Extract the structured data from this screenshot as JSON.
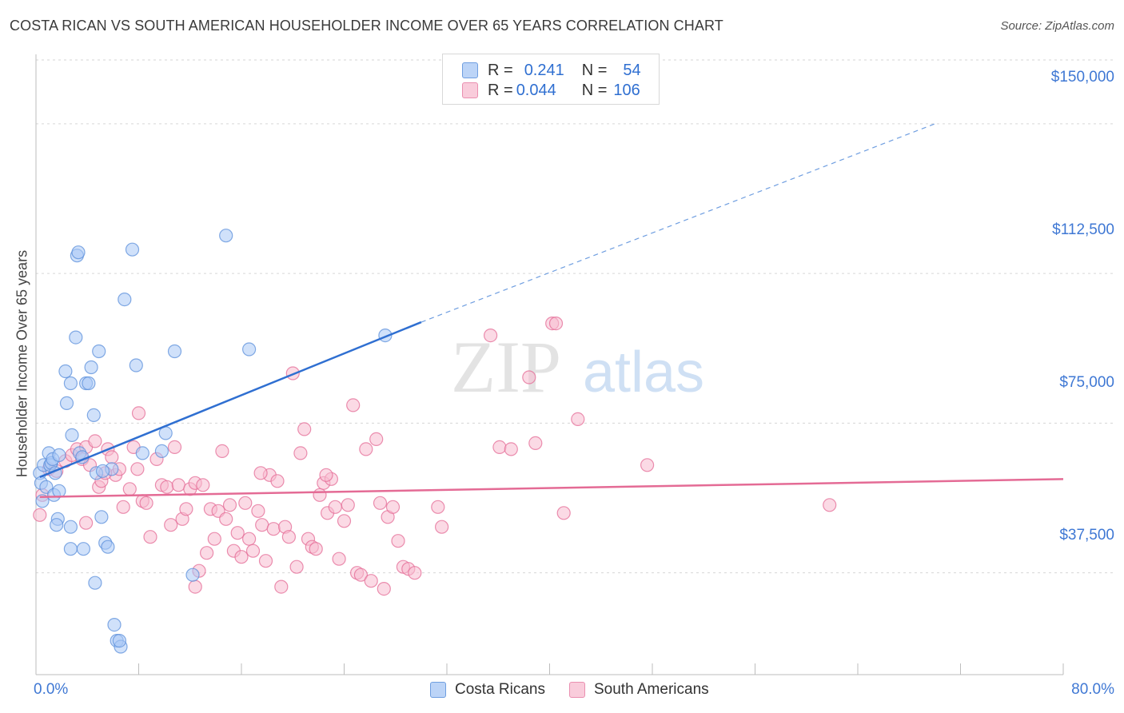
{
  "title": "COSTA RICAN VS SOUTH AMERICAN HOUSEHOLDER INCOME OVER 65 YEARS CORRELATION CHART",
  "source": "Source: ZipAtlas.com",
  "watermark": {
    "zip": "ZIP",
    "atlas": "atlas"
  },
  "legend": {
    "rows": [
      {
        "r_label": "R =",
        "r_value": "0.241",
        "n_label": "N =",
        "n_value": "54",
        "color": "#a9c8f5"
      },
      {
        "r_label": "R =",
        "r_value": "0.044",
        "n_label": "N =",
        "n_value": "106",
        "color": "#f7bcd0"
      }
    ]
  },
  "chart_data": {
    "type": "scatter",
    "title": "COSTA RICAN VS SOUTH AMERICAN HOUSEHOLDER INCOME OVER 65 YEARS CORRELATION CHART",
    "xlabel": "",
    "ylabel": "Householder Income Over 65 years",
    "xlim": [
      0,
      80
    ],
    "ylim": [
      12000,
      153000
    ],
    "x_tick_labels": [
      "0.0%",
      "80.0%"
    ],
    "y_ticks": [
      37500,
      75000,
      112500,
      150000
    ],
    "y_tick_labels": [
      "$37,500",
      "$75,000",
      "$112,500",
      "$150,000"
    ],
    "grid": true,
    "legend_position": "top-center",
    "series": [
      {
        "name": "Costa Ricans",
        "color": "#5b8fdb",
        "fill": "#a9c8f5",
        "trend": {
          "x": [
            0.3,
            30
          ],
          "y": [
            61500,
            100300
          ],
          "extends_to": [
            70,
            150000
          ]
        },
        "points": [
          [
            0.3,
            62500
          ],
          [
            0.4,
            60000
          ],
          [
            0.6,
            64500
          ],
          [
            0.8,
            59000
          ],
          [
            1.0,
            67500
          ],
          [
            1.1,
            64500
          ],
          [
            1.2,
            65000
          ],
          [
            1.3,
            66000
          ],
          [
            1.4,
            57000
          ],
          [
            1.5,
            62500
          ],
          [
            1.8,
            58000
          ],
          [
            1.8,
            67000
          ],
          [
            1.7,
            51000
          ],
          [
            2.3,
            88000
          ],
          [
            2.4,
            80000
          ],
          [
            2.7,
            85000
          ],
          [
            2.8,
            72000
          ],
          [
            3.1,
            96500
          ],
          [
            3.2,
            117000
          ],
          [
            3.3,
            117800
          ],
          [
            3.4,
            67500
          ],
          [
            3.6,
            66500
          ],
          [
            3.9,
            85000
          ],
          [
            4.1,
            85000
          ],
          [
            4.3,
            89000
          ],
          [
            4.5,
            77000
          ],
          [
            4.7,
            62500
          ],
          [
            4.9,
            93000
          ],
          [
            5.1,
            51500
          ],
          [
            5.4,
            45000
          ],
          [
            5.6,
            44000
          ],
          [
            5.9,
            63500
          ],
          [
            6.1,
            24500
          ],
          [
            6.3,
            20500
          ],
          [
            6.6,
            19000
          ],
          [
            6.9,
            106000
          ],
          [
            7.5,
            118500
          ],
          [
            7.8,
            89500
          ],
          [
            8.3,
            67500
          ],
          [
            9.8,
            68000
          ],
          [
            10.1,
            72500
          ],
          [
            10.8,
            93000
          ],
          [
            12.2,
            37000
          ],
          [
            14.8,
            122000
          ],
          [
            16.6,
            93500
          ],
          [
            27.2,
            97000
          ],
          [
            4.6,
            35000
          ],
          [
            2.7,
            49000
          ],
          [
            2.7,
            43500
          ],
          [
            3.7,
            43500
          ],
          [
            1.6,
            49500
          ],
          [
            0.5,
            55500
          ],
          [
            6.5,
            20500
          ],
          [
            5.2,
            63000
          ]
        ]
      },
      {
        "name": "South Americans",
        "color": "#e46b95",
        "fill": "#f7bcd0",
        "trend": {
          "x": [
            0.3,
            80
          ],
          "y": [
            56500,
            61000
          ]
        },
        "points": [
          [
            0.3,
            52000
          ],
          [
            0.5,
            57000
          ],
          [
            1.0,
            63500
          ],
          [
            1.6,
            63000
          ],
          [
            2.3,
            65500
          ],
          [
            2.8,
            67000
          ],
          [
            3.2,
            68500
          ],
          [
            3.6,
            66000
          ],
          [
            3.9,
            69000
          ],
          [
            4.2,
            64500
          ],
          [
            4.6,
            70500
          ],
          [
            4.9,
            59000
          ],
          [
            5.1,
            60500
          ],
          [
            5.6,
            68500
          ],
          [
            5.9,
            66500
          ],
          [
            6.2,
            62000
          ],
          [
            6.5,
            63500
          ],
          [
            6.8,
            54000
          ],
          [
            7.3,
            58500
          ],
          [
            7.6,
            69000
          ],
          [
            8.0,
            77500
          ],
          [
            8.3,
            55500
          ],
          [
            8.6,
            55000
          ],
          [
            8.9,
            46500
          ],
          [
            9.4,
            66000
          ],
          [
            9.8,
            59500
          ],
          [
            10.2,
            59000
          ],
          [
            10.5,
            49500
          ],
          [
            10.8,
            69000
          ],
          [
            11.1,
            59500
          ],
          [
            11.4,
            51000
          ],
          [
            11.7,
            53500
          ],
          [
            12.0,
            58500
          ],
          [
            12.4,
            60000
          ],
          [
            12.7,
            38000
          ],
          [
            13.0,
            59500
          ],
          [
            13.3,
            42500
          ],
          [
            13.6,
            53500
          ],
          [
            13.9,
            46000
          ],
          [
            14.2,
            53000
          ],
          [
            14.5,
            68000
          ],
          [
            14.8,
            51000
          ],
          [
            15.1,
            54500
          ],
          [
            15.4,
            43000
          ],
          [
            15.7,
            47500
          ],
          [
            16.0,
            41500
          ],
          [
            16.3,
            55000
          ],
          [
            16.6,
            46000
          ],
          [
            16.9,
            43000
          ],
          [
            17.3,
            53000
          ],
          [
            17.6,
            49500
          ],
          [
            17.9,
            40500
          ],
          [
            18.2,
            62000
          ],
          [
            18.5,
            48500
          ],
          [
            18.8,
            60500
          ],
          [
            19.1,
            34000
          ],
          [
            19.4,
            49000
          ],
          [
            19.7,
            46500
          ],
          [
            20.0,
            87500
          ],
          [
            20.3,
            39000
          ],
          [
            20.6,
            67500
          ],
          [
            20.9,
            73500
          ],
          [
            21.2,
            46000
          ],
          [
            21.5,
            44000
          ],
          [
            21.8,
            43500
          ],
          [
            22.1,
            57000
          ],
          [
            22.4,
            60000
          ],
          [
            22.7,
            52500
          ],
          [
            23.0,
            61000
          ],
          [
            23.3,
            54000
          ],
          [
            23.6,
            41000
          ],
          [
            24.0,
            50500
          ],
          [
            24.3,
            54500
          ],
          [
            24.7,
            79500
          ],
          [
            25.0,
            37500
          ],
          [
            25.3,
            37000
          ],
          [
            25.7,
            68500
          ],
          [
            26.1,
            35500
          ],
          [
            26.5,
            71000
          ],
          [
            26.8,
            55000
          ],
          [
            27.1,
            33500
          ],
          [
            27.4,
            51500
          ],
          [
            27.8,
            54000
          ],
          [
            28.2,
            45500
          ],
          [
            28.6,
            39000
          ],
          [
            29.0,
            38500
          ],
          [
            29.5,
            37500
          ],
          [
            31.3,
            54000
          ],
          [
            31.6,
            49000
          ],
          [
            35.4,
            97000
          ],
          [
            36.1,
            69000
          ],
          [
            37.0,
            68500
          ],
          [
            38.4,
            86500
          ],
          [
            38.9,
            70000
          ],
          [
            40.2,
            100000
          ],
          [
            40.5,
            100000
          ],
          [
            41.1,
            52500
          ],
          [
            42.2,
            76000
          ],
          [
            47.6,
            64500
          ],
          [
            61.8,
            54500
          ],
          [
            3.9,
            50000
          ],
          [
            5.4,
            62500
          ],
          [
            7.9,
            63500
          ],
          [
            17.5,
            62500
          ],
          [
            22.6,
            62000
          ],
          [
            12.4,
            34000
          ]
        ]
      }
    ]
  }
}
